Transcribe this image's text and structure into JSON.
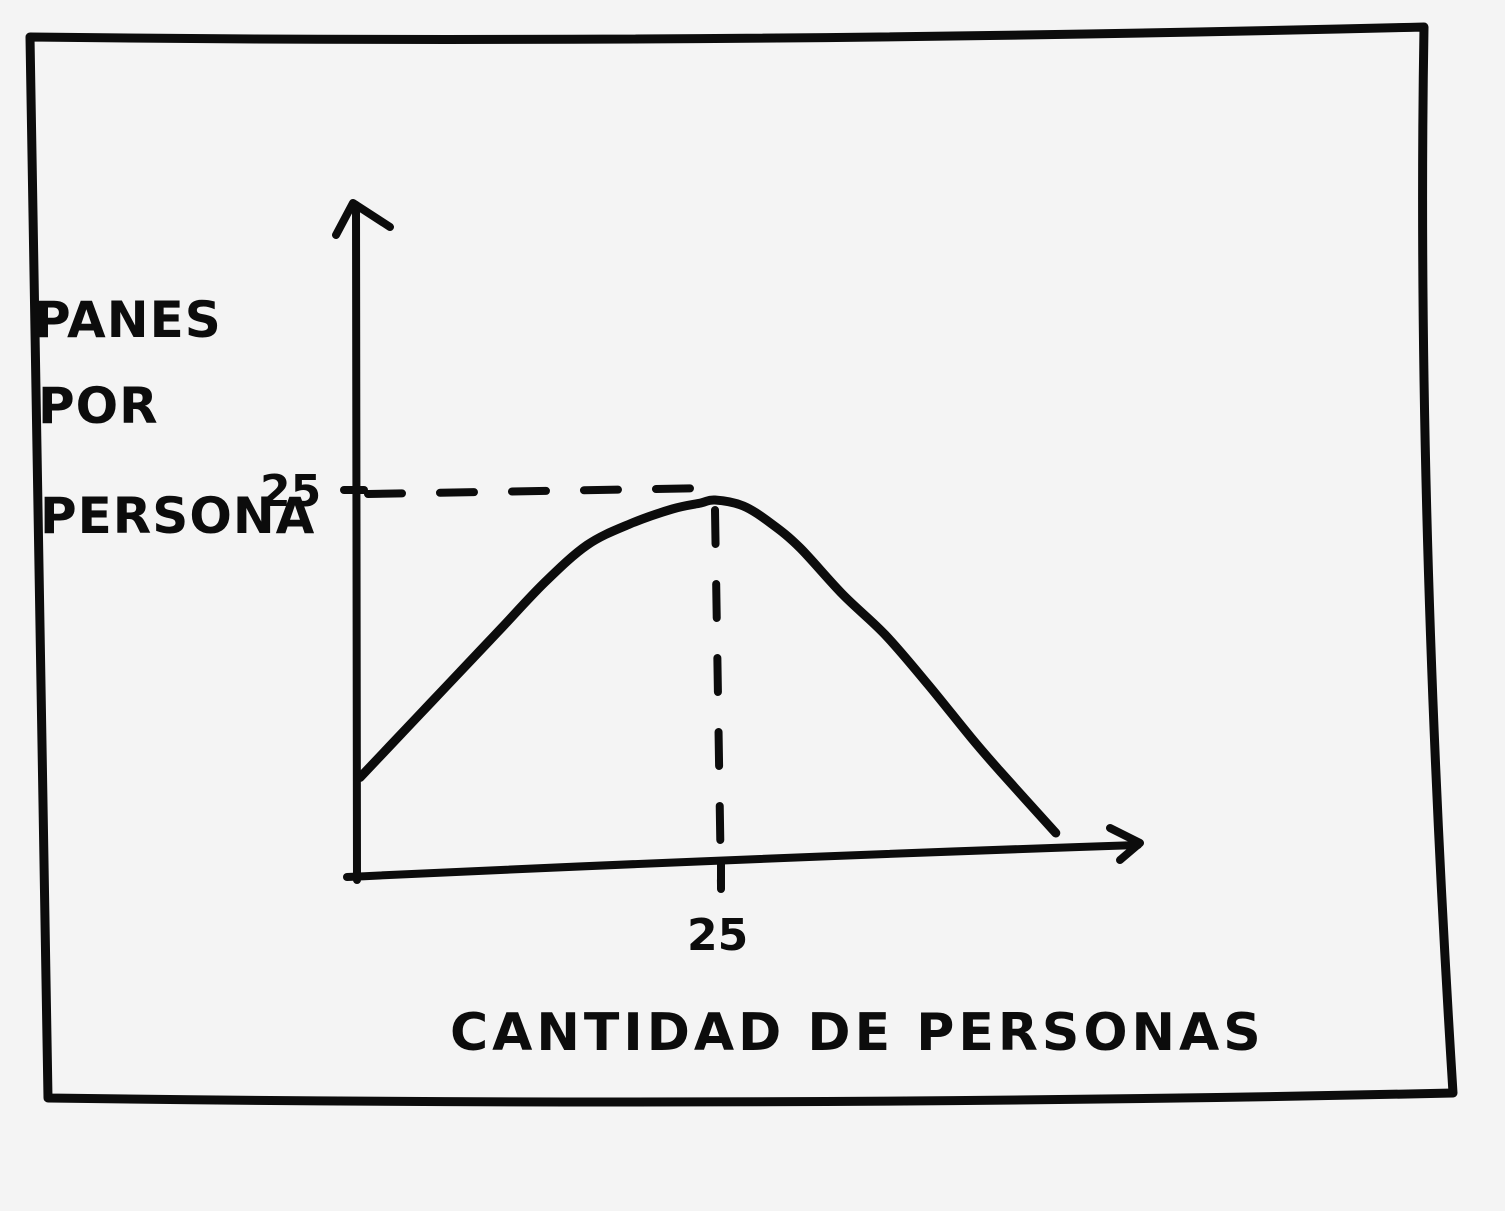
{
  "chart_data": {
    "type": "line",
    "title": "",
    "xlabel": "CANTIDAD DE PERSONAS",
    "ylabel_lines": [
      "PANES",
      "POR",
      "PERSONA"
    ],
    "xlim": [
      0,
      50
    ],
    "ylim": [
      0,
      38
    ],
    "grid": false,
    "x_ticks": [
      {
        "value": 25,
        "label": "25"
      }
    ],
    "y_ticks": [
      {
        "value": 25,
        "label": "25"
      }
    ],
    "reference_lines": [
      {
        "orientation": "horizontal",
        "value": 25,
        "style": "dashed"
      },
      {
        "orientation": "vertical",
        "value": 25,
        "style": "dashed"
      }
    ],
    "series": [
      {
        "x": [
          0,
          2,
          5,
          8,
          10,
          13,
          16,
          19,
          22,
          24,
          25,
          27,
          29,
          31,
          34,
          37,
          40,
          43,
          45,
          49
        ],
        "y": [
          6.5,
          8.5,
          11.5,
          14.5,
          16.5,
          19.5,
          22,
          23.4,
          24.4,
          24.8,
          25,
          24.6,
          23.4,
          21.8,
          18.7,
          16,
          12.7,
          9.2,
          7,
          2.8
        ]
      }
    ]
  }
}
